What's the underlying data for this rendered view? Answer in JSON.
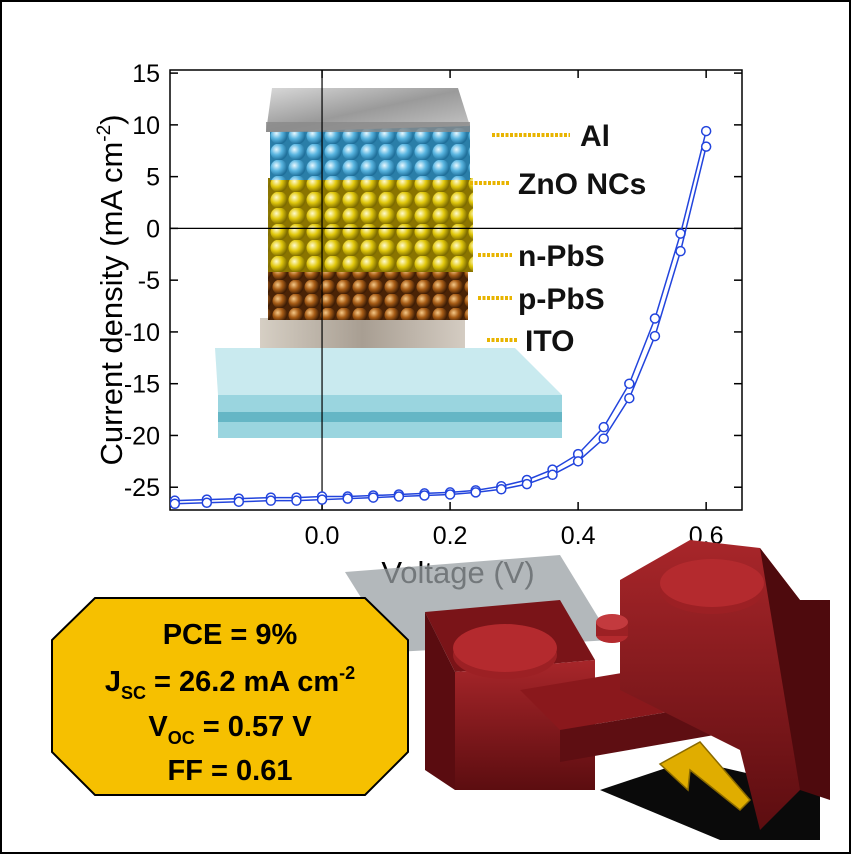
{
  "chart_data": {
    "type": "line",
    "xlabel": "Voltage (V)",
    "ylabel": [
      "Current density (mA cm",
      "-2",
      ")"
    ],
    "x": [
      -0.23,
      -0.18,
      -0.13,
      -0.08,
      -0.04,
      0,
      0.04,
      0.08,
      0.12,
      0.16,
      0.2,
      0.24,
      0.28,
      0.32,
      0.36,
      0.4,
      0.44,
      0.48,
      0.52,
      0.56,
      0.6
    ],
    "series": [
      {
        "color": "#2244dd",
        "values": [
          -26.3,
          -26.2,
          -26.1,
          -26.0,
          -26.0,
          -25.9,
          -25.9,
          -25.8,
          -25.7,
          -25.6,
          -25.5,
          -25.3,
          -24.9,
          -24.3,
          -23.3,
          -21.8,
          -19.2,
          -15.0,
          -8.7,
          -0.5,
          9.4
        ]
      },
      {
        "color": "#2244dd",
        "values": [
          -26.6,
          -26.5,
          -26.4,
          -26.3,
          -26.3,
          -26.2,
          -26.1,
          -26.0,
          -25.9,
          -25.8,
          -25.7,
          -25.5,
          -25.2,
          -24.7,
          -23.8,
          -22.5,
          -20.3,
          -16.4,
          -10.4,
          -2.2,
          7.9
        ]
      }
    ],
    "xlim": [
      -0.2375,
      0.656
    ],
    "xticks": [
      {
        "value": 0,
        "label": "0.0"
      },
      0.2,
      0.4,
      0.6
    ],
    "ylim": [
      -27.2,
      15.3
    ],
    "yticks": [
      15,
      10,
      5,
      0,
      -5,
      -10,
      -15,
      -20,
      -25
    ],
    "zero_lines": true,
    "layers": [
      "Al",
      "ZnO NCs",
      "n-PbS",
      "p-PbS",
      "ITO"
    ],
    "metrics": {
      "pce": "PCE = 9%",
      "jsc": [
        "J",
        "SC",
        " = 26.2 mA cm",
        "-2"
      ],
      "voc": [
        "V",
        "OC",
        " = 0.57 V"
      ],
      "ff": "FF = 0.61"
    }
  }
}
